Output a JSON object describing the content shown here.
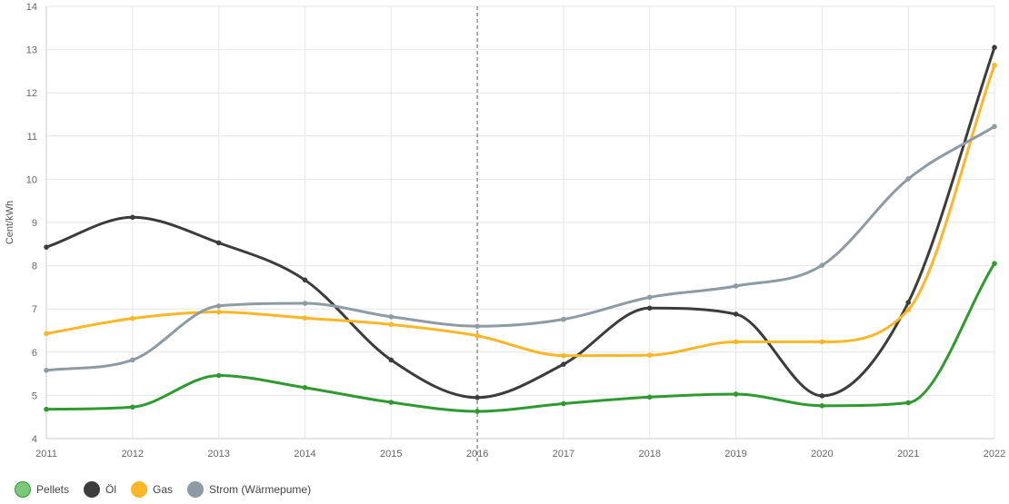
{
  "chart_data": {
    "type": "line",
    "title": "",
    "xlabel": "",
    "ylabel": "Cent/kWh",
    "x": [
      "2011",
      "2012",
      "2013",
      "2014",
      "2015",
      "2016",
      "2017",
      "2018",
      "2019",
      "2020",
      "2021",
      "2022"
    ],
    "ylim": [
      4,
      14
    ],
    "yticks": [
      "4",
      "5",
      "6",
      "7",
      "8",
      "9",
      "10",
      "11",
      "12",
      "13",
      "14"
    ],
    "grid": true,
    "highlight_x": "2016",
    "legend_position": "bottom-left",
    "series": [
      {
        "name": "Pellets",
        "key": "pellets",
        "color": "#2e9a30",
        "legend_color": "#7ac87a",
        "values": [
          4.68,
          4.73,
          5.46,
          5.18,
          4.84,
          4.63,
          4.81,
          4.96,
          5.03,
          4.76,
          4.83,
          8.05
        ]
      },
      {
        "name": "Öl",
        "key": "oel",
        "color": "#3c3c3c",
        "legend_color": "#3c3c3c",
        "values": [
          8.43,
          9.12,
          8.53,
          7.67,
          5.82,
          4.95,
          5.72,
          7.02,
          6.88,
          4.99,
          7.15,
          13.05
        ]
      },
      {
        "name": "Gas",
        "key": "gas",
        "color": "#fbb727",
        "legend_color": "#fbb727",
        "values": [
          6.43,
          6.78,
          6.93,
          6.79,
          6.64,
          6.38,
          5.92,
          5.93,
          6.24,
          6.24,
          6.98,
          12.64
        ]
      },
      {
        "name": "Strom (Wärmepume)",
        "key": "strom",
        "color": "#8c9ba4",
        "legend_color": "#8c9ba4",
        "values": [
          5.58,
          5.82,
          7.07,
          7.13,
          6.82,
          6.6,
          6.76,
          7.27,
          7.53,
          8.01,
          10.01,
          11.22
        ]
      }
    ]
  }
}
